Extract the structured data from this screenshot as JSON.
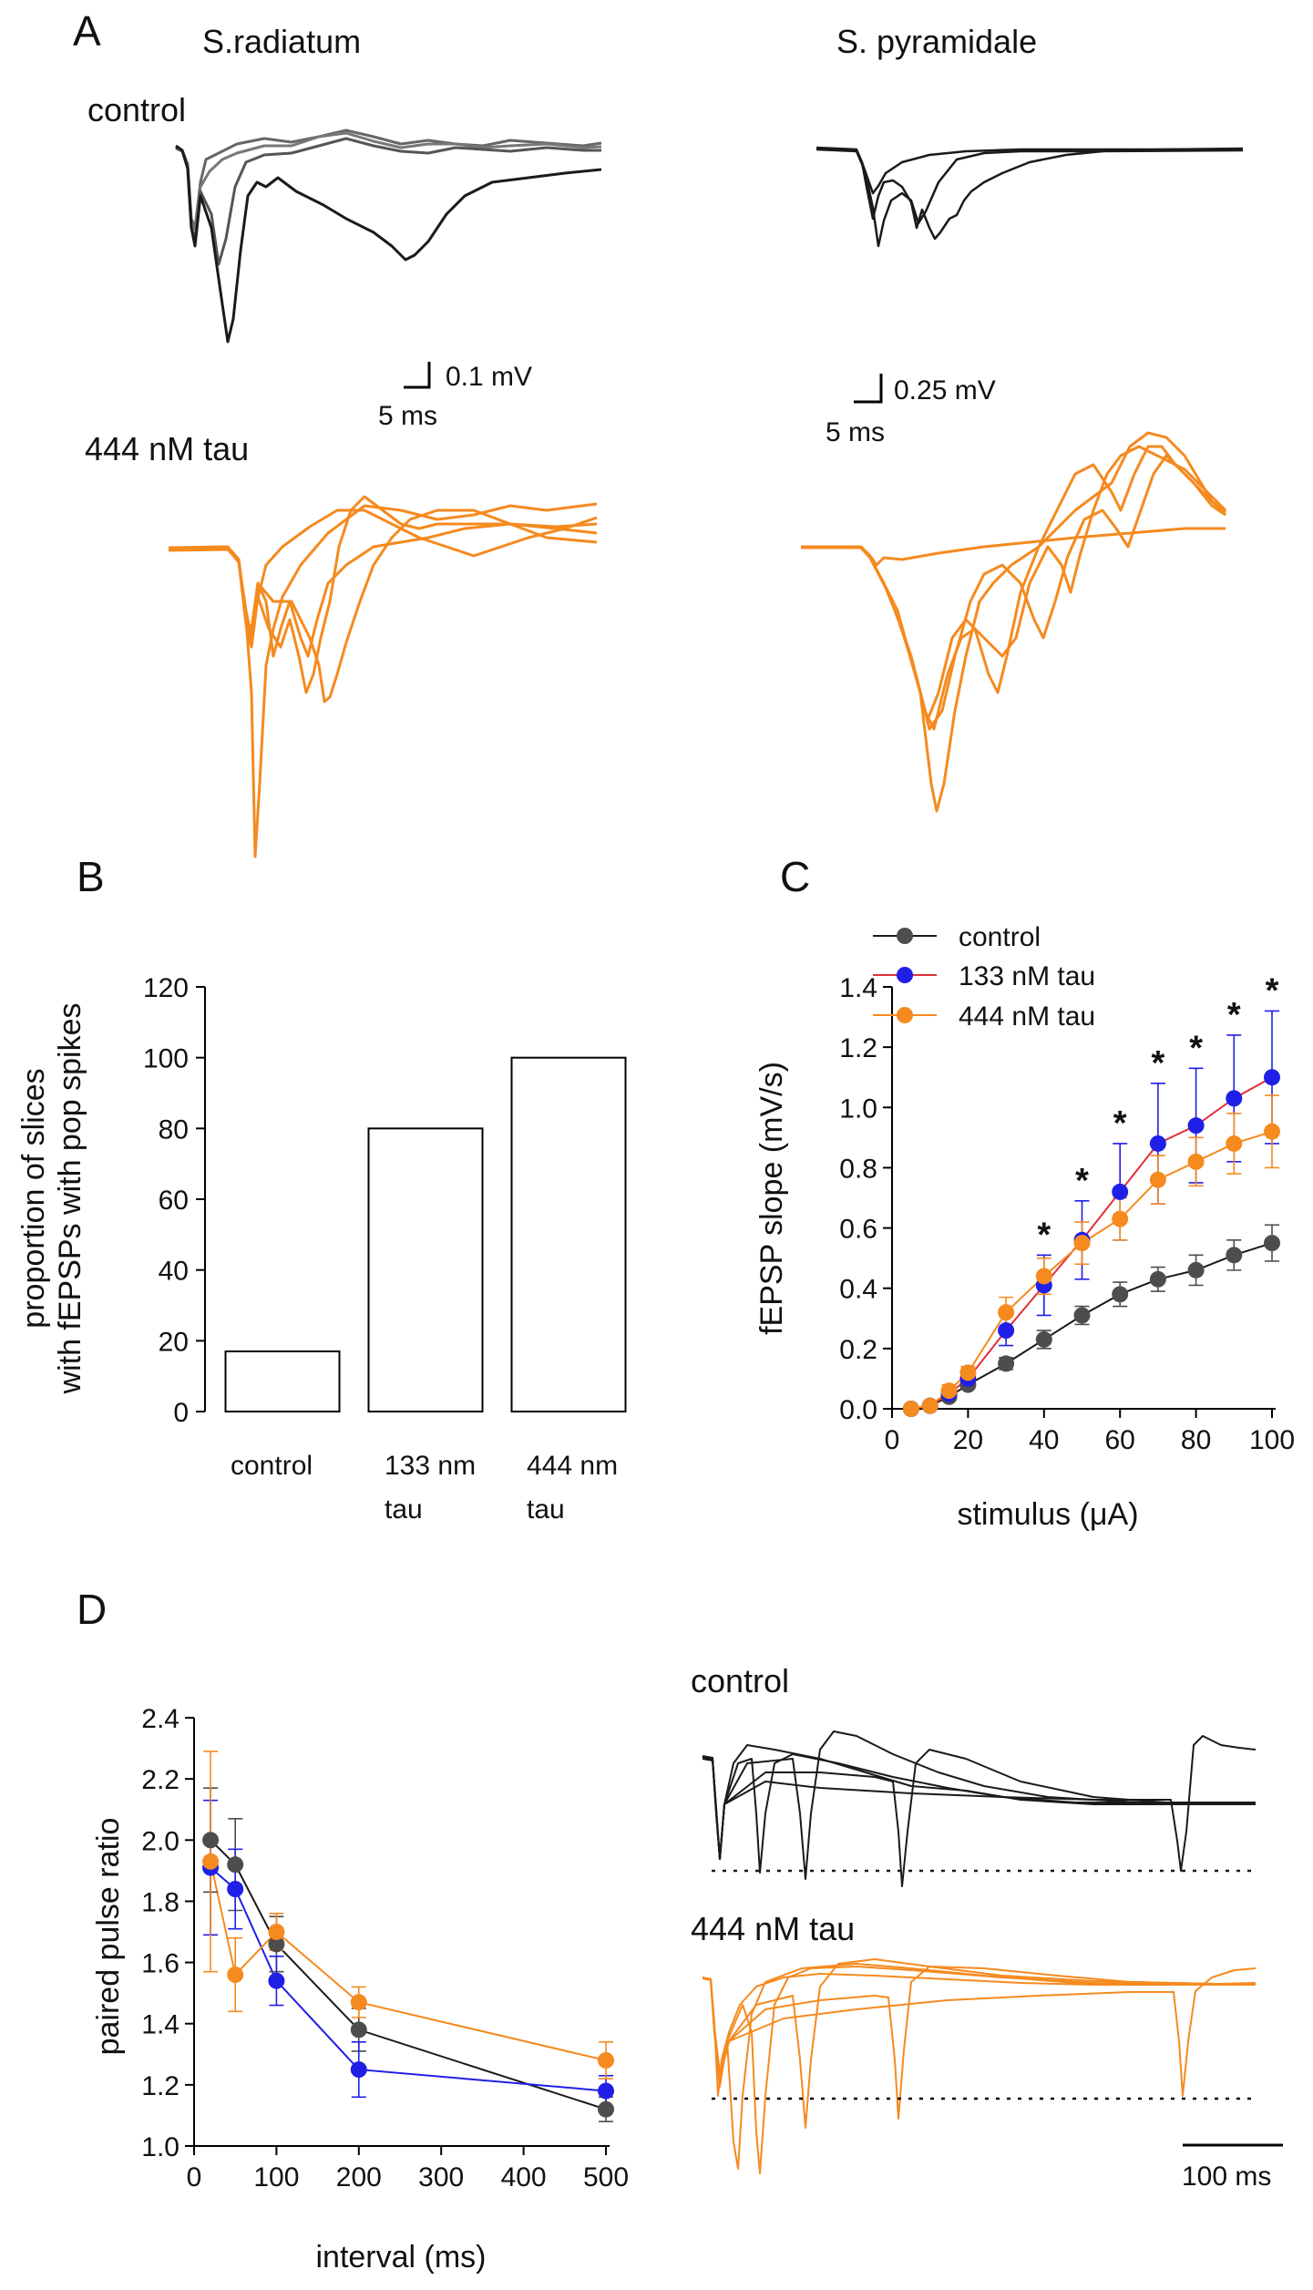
{
  "colors": {
    "control_trace": "#1a1a1a",
    "control_gray": "#555555",
    "control_marker": "#4d4d4d",
    "tau133": "#1f1fe6",
    "tau133_line": "#e0303a",
    "tau444": "#f58a1f",
    "black": "#000000"
  },
  "panelA": {
    "label": "A",
    "col1_title": "S.radiatum",
    "col2_title": "S. pyramidale",
    "row1_label": "control",
    "row2_label": "444 nM tau",
    "scalebar1_v": "0.1 mV",
    "scalebar1_t": "5 ms",
    "scalebar2_v": "0.25 mV",
    "scalebar2_t": "5 ms"
  },
  "panelD_traces": {
    "row1_label": "control",
    "row2_label": "444 nM tau",
    "scalebar": "100 ms"
  },
  "chart_data": [
    {
      "id": "B",
      "panel_label": "B",
      "type": "bar",
      "categories": [
        "control",
        "133 nm\ntau",
        "444 nm\ntau"
      ],
      "category_lines": [
        [
          "control"
        ],
        [
          "133 nm",
          "tau"
        ],
        [
          "444 nm",
          "tau"
        ]
      ],
      "values": [
        17,
        80,
        100
      ],
      "ylabel_lines": [
        "proportion of slices",
        "with fEPSPs with pop spikes"
      ],
      "ylim": [
        0,
        120
      ],
      "yticks": [
        0,
        20,
        40,
        60,
        80,
        100,
        120
      ]
    },
    {
      "id": "C",
      "panel_label": "C",
      "type": "line",
      "xlabel": "stimulus (μA)",
      "ylabel": "fEPSP slope (mV/s)",
      "xlim": [
        0,
        100
      ],
      "ylim": [
        0,
        1.4
      ],
      "xticks": [
        0,
        20,
        40,
        60,
        80,
        100
      ],
      "yticks": [
        "0.0",
        "0.2",
        "0.4",
        "0.6",
        "0.8",
        "1.0",
        "1.2",
        "1.4"
      ],
      "x": [
        5,
        10,
        15,
        20,
        30,
        40,
        50,
        60,
        70,
        80,
        90,
        100
      ],
      "legend": [
        "control",
        "133 nM tau",
        "444 nM tau"
      ],
      "significance_marker": "*",
      "significant_x": [
        40,
        50,
        60,
        70,
        80,
        90,
        100
      ],
      "series": [
        {
          "name": "control",
          "values": [
            0.0,
            0.01,
            0.04,
            0.08,
            0.15,
            0.23,
            0.31,
            0.38,
            0.43,
            0.46,
            0.51,
            0.55
          ],
          "err": [
            0,
            0,
            0.01,
            0.01,
            0.02,
            0.03,
            0.03,
            0.04,
            0.04,
            0.05,
            0.05,
            0.06
          ]
        },
        {
          "name": "133 nM tau",
          "values": [
            0.0,
            0.01,
            0.05,
            0.1,
            0.26,
            0.41,
            0.56,
            0.72,
            0.88,
            0.94,
            1.03,
            1.1
          ],
          "err": [
            0,
            0,
            0.02,
            0.02,
            0.05,
            0.1,
            0.13,
            0.16,
            0.2,
            0.19,
            0.21,
            0.22
          ]
        },
        {
          "name": "444 nM tau",
          "values": [
            0.0,
            0.01,
            0.06,
            0.12,
            0.32,
            0.44,
            0.55,
            0.63,
            0.76,
            0.82,
            0.88,
            0.92
          ],
          "err": [
            0,
            0,
            0.02,
            0.02,
            0.05,
            0.06,
            0.07,
            0.07,
            0.08,
            0.08,
            0.1,
            0.12
          ]
        }
      ]
    },
    {
      "id": "D",
      "panel_label": "D",
      "type": "line",
      "xlabel": "interval (ms)",
      "ylabel": "paired pulse ratio",
      "xlim": [
        0,
        500
      ],
      "ylim": [
        1.0,
        2.4
      ],
      "xticks": [
        0,
        100,
        200,
        300,
        400,
        500
      ],
      "yticks": [
        "1.0",
        "1.2",
        "1.4",
        "1.6",
        "1.8",
        "2.0",
        "2.2",
        "2.4"
      ],
      "x": [
        20,
        50,
        100,
        200,
        500
      ],
      "series": [
        {
          "name": "control",
          "values": [
            2.0,
            1.92,
            1.66,
            1.38,
            1.12
          ],
          "err": [
            0.17,
            0.15,
            0.09,
            0.07,
            0.04
          ]
        },
        {
          "name": "133 nM tau",
          "values": [
            1.91,
            1.84,
            1.54,
            1.25,
            1.18
          ],
          "err": [
            0.22,
            0.13,
            0.08,
            0.09,
            0.05
          ]
        },
        {
          "name": "444 nM tau",
          "values": [
            1.93,
            1.56,
            1.7,
            1.47,
            1.28
          ],
          "err": [
            0.36,
            0.12,
            0.06,
            0.05,
            0.06
          ]
        }
      ]
    }
  ]
}
